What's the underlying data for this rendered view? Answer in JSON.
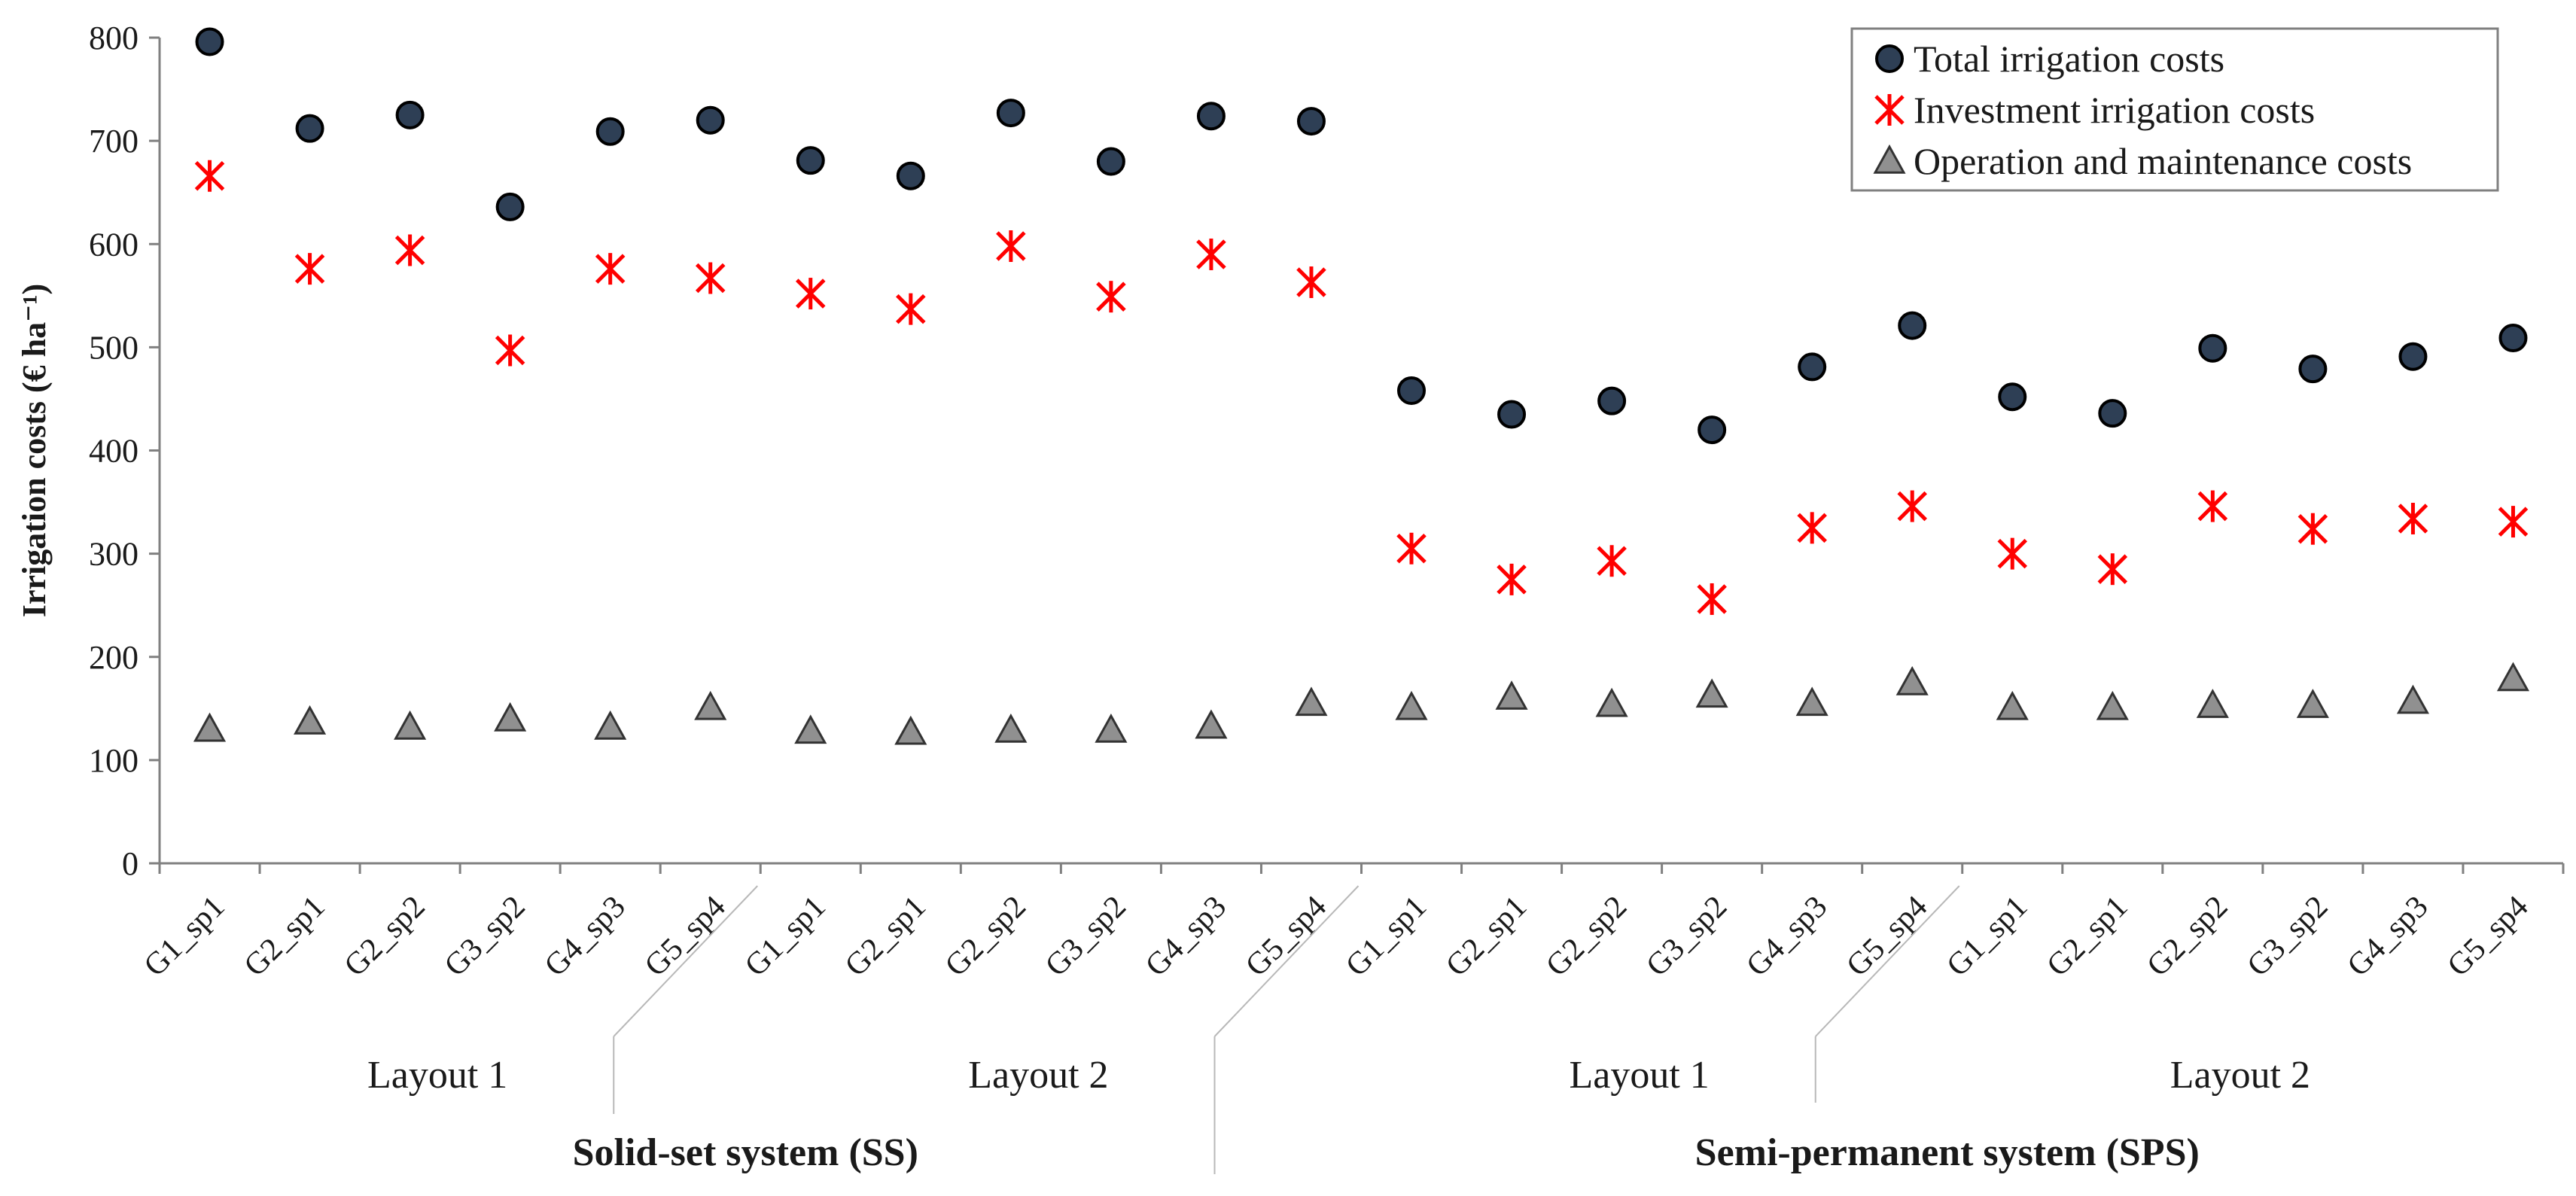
{
  "chart_data": {
    "type": "scatter",
    "ylabel": "Irrigation  costs (€ ha⁻¹)",
    "ylim": [
      0,
      800
    ],
    "yticks": [
      0,
      100,
      200,
      300,
      400,
      500,
      600,
      700,
      800
    ],
    "grid": false,
    "legend_position": "top-right",
    "categories": [
      "G1_sp1",
      "G2_sp1",
      "G2_sp2",
      "G3_sp2",
      "G4_sp3",
      "G5_sp4",
      "G1_sp1",
      "G2_sp1",
      "G2_sp2",
      "G3_sp2",
      "G4_sp3",
      "G5_sp4",
      "G1_sp1",
      "G2_sp1",
      "G2_sp2",
      "G3_sp2",
      "G4_sp3",
      "G5_sp4",
      "G1_sp1",
      "G2_sp1",
      "G2_sp2",
      "G3_sp2",
      "G4_sp3",
      "G5_sp4"
    ],
    "series": [
      {
        "name": "Total irrigation costs",
        "marker": "circle",
        "color": "#2e3f55",
        "values": [
          796,
          712,
          725,
          636,
          709,
          720,
          681,
          666,
          727,
          680,
          724,
          719,
          458,
          435,
          448,
          420,
          481,
          521,
          452,
          436,
          499,
          479,
          491,
          509
        ]
      },
      {
        "name": "Investment irrigation costs",
        "marker": "asterisk",
        "color": "#ff0000",
        "values": [
          666,
          576,
          594,
          497,
          576,
          567,
          552,
          537,
          598,
          549,
          590,
          563,
          305,
          275,
          293,
          256,
          325,
          346,
          300,
          285,
          346,
          324,
          334,
          331
        ]
      },
      {
        "name": "Operation and maintenance costs",
        "marker": "triangle",
        "color": "#909090",
        "values": [
          130,
          137,
          132,
          140,
          132,
          151,
          128,
          127,
          129,
          129,
          133,
          155,
          151,
          161,
          154,
          163,
          155,
          175,
          151,
          151,
          153,
          153,
          157,
          179
        ]
      }
    ],
    "groups": [
      {
        "label": "Layout 1",
        "span": [
          0,
          5
        ]
      },
      {
        "label": "Layout 2",
        "span": [
          6,
          11
        ]
      },
      {
        "label": "Layout 1",
        "span": [
          12,
          17
        ]
      },
      {
        "label": "Layout 2",
        "span": [
          18,
          23
        ]
      }
    ],
    "systems": [
      {
        "label": "Solid-set system (SS)",
        "span": [
          0,
          11
        ]
      },
      {
        "label": "Semi-permanent system (SPS)",
        "span": [
          12,
          23
        ]
      }
    ]
  }
}
